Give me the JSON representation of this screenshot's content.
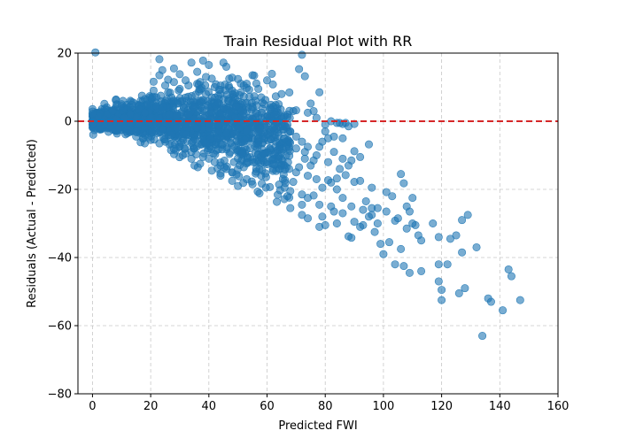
{
  "chart_data": {
    "type": "scatter",
    "title": "Train Residual Plot with RR",
    "xlabel": "Predicted FWI",
    "ylabel": "Residuals (Actual - Predicted)",
    "xlim": [
      -5,
      160
    ],
    "ylim": [
      -80,
      20
    ],
    "xticks": [
      0,
      20,
      40,
      60,
      80,
      100,
      120,
      140,
      160
    ],
    "yticks": [
      -80,
      -60,
      -40,
      -20,
      0,
      20
    ],
    "grid": true,
    "grid_style": "dashed",
    "point_color": "#1f77b4",
    "point_alpha": 0.6,
    "reference_line": {
      "y": 0,
      "color": "#d62728",
      "style": "dashed"
    },
    "points": [
      [
        1,
        20.2
      ],
      [
        23,
        18.2
      ],
      [
        24,
        15
      ],
      [
        28,
        15.5
      ],
      [
        34,
        17.2
      ],
      [
        38,
        17.8
      ],
      [
        40,
        16.5
      ],
      [
        45,
        17.2
      ],
      [
        46,
        16
      ],
      [
        72,
        19.5
      ],
      [
        71,
        15.3
      ],
      [
        73,
        13.2
      ],
      [
        60,
        12
      ],
      [
        62,
        10.8
      ],
      [
        55,
        13.5
      ],
      [
        50,
        12.4
      ],
      [
        48,
        12.8
      ],
      [
        30,
        13.8
      ],
      [
        26,
        12.2
      ],
      [
        21,
        11.6
      ],
      [
        36,
        11
      ],
      [
        42,
        10
      ],
      [
        52,
        10.5
      ],
      [
        57,
        9.5
      ],
      [
        65,
        8
      ],
      [
        78,
        8.5
      ],
      [
        75,
        5.2
      ],
      [
        76,
        3
      ],
      [
        74,
        2.5
      ],
      [
        69,
        3
      ],
      [
        70,
        3.2
      ],
      [
        77,
        1
      ],
      [
        82,
        0
      ],
      [
        84,
        -0.5
      ],
      [
        85,
        -0.5
      ],
      [
        86,
        -0.8
      ],
      [
        87,
        -0.5
      ],
      [
        88,
        -1.5
      ],
      [
        90,
        -0.8
      ],
      [
        80,
        -1
      ],
      [
        67,
        2
      ],
      [
        64,
        5
      ],
      [
        58,
        7
      ],
      [
        48,
        9
      ],
      [
        44,
        8
      ],
      [
        80,
        -3
      ],
      [
        81,
        -5
      ],
      [
        79,
        -6
      ],
      [
        83,
        -4.5
      ],
      [
        78,
        -7.5
      ],
      [
        86,
        -5
      ],
      [
        95,
        -6.8
      ],
      [
        90,
        -8.8
      ],
      [
        92,
        -10.5
      ],
      [
        89,
        -11.5
      ],
      [
        88,
        -13
      ],
      [
        77,
        -10
      ],
      [
        76,
        -11.5
      ],
      [
        73,
        -9
      ],
      [
        71,
        -13.5
      ],
      [
        70,
        -15
      ],
      [
        74,
        -16
      ],
      [
        77,
        -17
      ],
      [
        69,
        -17.8
      ],
      [
        66,
        -19.5
      ],
      [
        68,
        -20.5
      ],
      [
        72,
        -21.5
      ],
      [
        76,
        -21.8
      ],
      [
        79,
        -19.5
      ],
      [
        81,
        -17.3
      ],
      [
        84,
        -16.8
      ],
      [
        87,
        -15.8
      ],
      [
        90,
        -17.8
      ],
      [
        92,
        -17.5
      ],
      [
        96,
        -19.5
      ],
      [
        101,
        -20.8
      ],
      [
        103,
        -22
      ],
      [
        106,
        -15.5
      ],
      [
        107,
        -18.2
      ],
      [
        110,
        -22.5
      ],
      [
        101,
        -26.5
      ],
      [
        94,
        -23.5
      ],
      [
        96,
        -25.5
      ],
      [
        98,
        -25.5
      ],
      [
        93,
        -26
      ],
      [
        89,
        -25
      ],
      [
        86,
        -27
      ],
      [
        82,
        -25
      ],
      [
        78,
        -24.5
      ],
      [
        74,
        -22.5
      ],
      [
        72,
        -24.5
      ],
      [
        67,
        -22
      ],
      [
        68,
        -25.5
      ],
      [
        72,
        -27.5
      ],
      [
        74,
        -28.5
      ],
      [
        79,
        -28
      ],
      [
        80,
        -30.5
      ],
      [
        78,
        -31
      ],
      [
        83,
        -26.5
      ],
      [
        84,
        -30
      ],
      [
        88,
        -33.8
      ],
      [
        89,
        -34.2
      ],
      [
        90,
        -29.5
      ],
      [
        92,
        -31
      ],
      [
        93,
        -30.5
      ],
      [
        95,
        -28
      ],
      [
        96,
        -27.5
      ],
      [
        98,
        -30
      ],
      [
        97,
        -32.5
      ],
      [
        99,
        -36
      ],
      [
        102,
        -35.5
      ],
      [
        100,
        -39
      ],
      [
        104,
        -29.2
      ],
      [
        105,
        -28.5
      ],
      [
        108,
        -25
      ],
      [
        109,
        -26.5
      ],
      [
        110,
        -30
      ],
      [
        111,
        -30.5
      ],
      [
        112,
        -33.5
      ],
      [
        113,
        -35
      ],
      [
        108,
        -31.5
      ],
      [
        106,
        -37.5
      ],
      [
        104,
        -42
      ],
      [
        107,
        -42.5
      ],
      [
        109,
        -44.5
      ],
      [
        113,
        -44
      ],
      [
        117,
        -30
      ],
      [
        119,
        -34
      ],
      [
        119,
        -42
      ],
      [
        122,
        -42
      ],
      [
        123,
        -34.5
      ],
      [
        125,
        -33.5
      ],
      [
        127,
        -29
      ],
      [
        127,
        -38.5
      ],
      [
        129,
        -27.5
      ],
      [
        132,
        -37
      ],
      [
        119,
        -47
      ],
      [
        120,
        -49.5
      ],
      [
        120,
        -52.5
      ],
      [
        126,
        -50.5
      ],
      [
        128,
        -49
      ],
      [
        136,
        -52
      ],
      [
        137,
        -53
      ],
      [
        141,
        -55.5
      ],
      [
        143,
        -43.5
      ],
      [
        144,
        -45.5
      ],
      [
        147,
        -52.5
      ],
      [
        134,
        -63
      ],
      [
        86,
        -22.5
      ],
      [
        84,
        -20
      ],
      [
        82,
        -18
      ],
      [
        85,
        -14
      ],
      [
        81,
        -12
      ],
      [
        83,
        -9
      ],
      [
        86,
        -11
      ],
      [
        66,
        -13
      ],
      [
        64,
        -11
      ],
      [
        62,
        -14
      ],
      [
        60,
        -12
      ],
      [
        58,
        -16
      ],
      [
        55,
        -18.5
      ],
      [
        53,
        -17
      ],
      [
        50,
        -19
      ],
      [
        48,
        -17.5
      ],
      [
        46,
        -14
      ],
      [
        44,
        -13
      ],
      [
        42,
        -12
      ],
      [
        40,
        -11
      ],
      [
        38,
        -10.5
      ],
      [
        34,
        -9
      ],
      [
        30,
        -7.5
      ],
      [
        25,
        -6
      ],
      [
        20,
        -5.5
      ],
      [
        18,
        -4
      ],
      [
        15,
        -3
      ],
      [
        12,
        -2.5
      ],
      [
        9,
        -2
      ],
      [
        6,
        -1.5
      ],
      [
        4,
        -1
      ],
      [
        2,
        -0.5
      ],
      [
        1,
        0.5
      ],
      [
        3,
        1
      ],
      [
        5,
        2
      ],
      [
        7,
        3
      ],
      [
        10,
        4.5
      ],
      [
        14,
        5.5
      ],
      [
        18,
        6.5
      ],
      [
        22,
        7
      ],
      [
        26,
        8.5
      ],
      [
        30,
        9.5
      ],
      [
        33,
        10.5
      ],
      [
        37,
        11.5
      ],
      [
        41,
        12.5
      ],
      [
        44,
        10.5
      ],
      [
        47,
        9.8
      ],
      [
        51,
        8.5
      ],
      [
        54,
        7.2
      ],
      [
        56,
        6
      ],
      [
        59,
        5
      ],
      [
        61,
        3.5
      ],
      [
        63,
        2
      ],
      [
        65,
        0.8
      ],
      [
        67,
        -1
      ],
      [
        68,
        -3
      ],
      [
        70,
        -4.5
      ],
      [
        72,
        -6
      ],
      [
        74,
        -7.5
      ],
      [
        63,
        -6
      ],
      [
        61,
        -8
      ],
      [
        59,
        -9.5
      ],
      [
        57,
        -7
      ],
      [
        55,
        -5
      ],
      [
        53,
        -3
      ],
      [
        51,
        -1
      ],
      [
        49,
        1
      ],
      [
        47,
        2.5
      ],
      [
        45,
        4
      ],
      [
        43,
        5.5
      ],
      [
        41,
        7
      ],
      [
        39,
        8
      ],
      [
        37,
        6
      ],
      [
        35,
        4
      ],
      [
        33,
        2
      ],
      [
        31,
        0
      ],
      [
        29,
        -2
      ],
      [
        27,
        -4
      ],
      [
        24,
        -2.5
      ],
      [
        22,
        -1
      ],
      [
        20,
        1
      ],
      [
        18,
        2.5
      ],
      [
        16,
        3.5
      ],
      [
        13,
        2
      ],
      [
        11,
        1
      ],
      [
        8,
        0.5
      ],
      [
        6,
        0
      ],
      [
        4,
        0.5
      ],
      [
        2,
        1.5
      ],
      [
        0,
        2.2
      ],
      [
        0,
        0
      ],
      [
        0,
        -1
      ],
      [
        8,
        6.2
      ],
      [
        12,
        -3.5
      ],
      [
        15,
        -4.5
      ],
      [
        19,
        5
      ],
      [
        23,
        -6.5
      ],
      [
        28,
        -8.2
      ],
      [
        32,
        -9.5
      ],
      [
        35,
        -8
      ],
      [
        39,
        -6.5
      ],
      [
        43,
        -5
      ],
      [
        46,
        -3.5
      ],
      [
        50,
        -2
      ],
      [
        54,
        -0.5
      ],
      [
        58,
        1
      ],
      [
        62,
        -2
      ],
      [
        66,
        -5
      ],
      [
        70,
        -8
      ],
      [
        73,
        -11
      ],
      [
        75,
        -13
      ],
      [
        56,
        -12
      ],
      [
        52,
        -13.5
      ],
      [
        48,
        -15
      ],
      [
        44,
        -16
      ],
      [
        41,
        -14.5
      ],
      [
        37,
        -12.5
      ],
      [
        34,
        -11
      ],
      [
        31,
        -10
      ],
      [
        27,
        -8.5
      ],
      [
        47,
        12.5
      ],
      [
        53,
        11
      ],
      [
        36,
        14.5
      ],
      [
        32,
        12
      ],
      [
        25,
        10.5
      ],
      [
        21,
        9
      ],
      [
        17,
        7.5
      ],
      [
        13,
        6
      ],
      [
        10,
        5
      ],
      [
        23,
        13.5
      ],
      [
        28,
        11.5
      ],
      [
        39,
        13
      ]
    ]
  }
}
